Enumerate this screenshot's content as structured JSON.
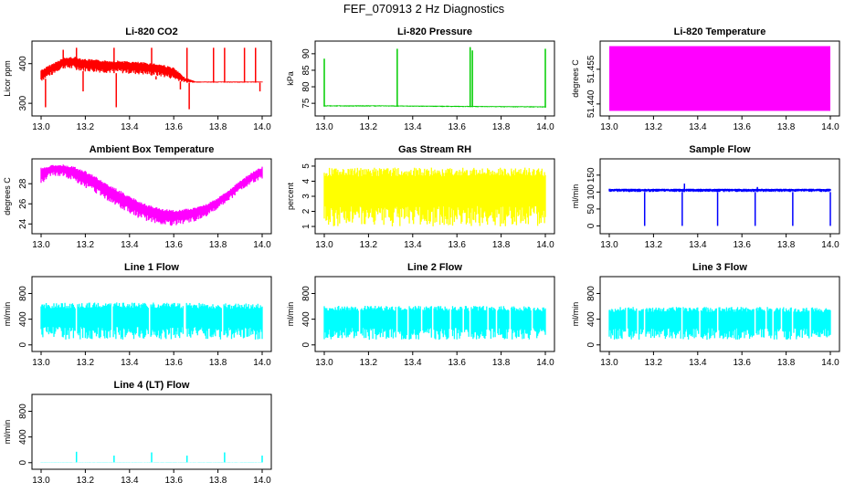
{
  "figure": {
    "title": "FEF_070913  2 Hz Diagnostics"
  },
  "chart_data": [
    {
      "type": "line",
      "title": "Li-820 CO2",
      "ylabel": "Licor ppm",
      "color": "#ff0000",
      "xlim": [
        13.0,
        14.0
      ],
      "ylim": [
        275,
        450
      ],
      "xticks": [
        "13.0",
        "13.2",
        "13.4",
        "13.6",
        "13.8",
        "14.0"
      ],
      "yticks": [
        {
          "v": 300,
          "label": "300"
        },
        {
          "v": 400,
          "label": "400"
        }
      ],
      "series": [
        {
          "x": [
            13.0,
            13.05,
            13.1,
            13.15,
            13.2,
            13.25,
            13.3,
            13.35,
            13.4,
            13.45,
            13.5,
            13.55,
            13.6,
            13.65,
            13.7,
            13.75,
            13.8,
            13.85,
            13.9,
            13.95,
            14.0
          ],
          "low": [
            355,
            372,
            388,
            385,
            380,
            378,
            376,
            376,
            374,
            372,
            370,
            366,
            360,
            352,
            352,
            352,
            352,
            352,
            352,
            352,
            352
          ],
          "high": [
            385,
            400,
            415,
            418,
            412,
            410,
            408,
            408,
            406,
            404,
            402,
            398,
            390,
            365,
            355,
            355,
            355,
            355,
            355,
            355,
            355
          ]
        }
      ],
      "spikes": [
        {
          "x": 13.02,
          "y": 290
        },
        {
          "x": 13.05,
          "y": 380
        },
        {
          "x": 13.1,
          "y": 435
        },
        {
          "x": 13.16,
          "y": 440
        },
        {
          "x": 13.19,
          "y": 330
        },
        {
          "x": 13.33,
          "y": 440
        },
        {
          "x": 13.34,
          "y": 290
        },
        {
          "x": 13.5,
          "y": 440
        },
        {
          "x": 13.52,
          "y": 360
        },
        {
          "x": 13.63,
          "y": 335
        },
        {
          "x": 13.66,
          "y": 440
        },
        {
          "x": 13.67,
          "y": 285
        },
        {
          "x": 13.78,
          "y": 440
        },
        {
          "x": 13.83,
          "y": 440
        },
        {
          "x": 13.92,
          "y": 440
        },
        {
          "x": 13.97,
          "y": 440
        },
        {
          "x": 13.99,
          "y": 330
        }
      ]
    },
    {
      "type": "line",
      "title": "Li-820 Pressure",
      "ylabel": "kPa",
      "color": "#00cd00",
      "xlim": [
        13.0,
        14.0
      ],
      "ylim": [
        72,
        93
      ],
      "xticks": [
        "13.0",
        "13.2",
        "13.4",
        "13.6",
        "13.8",
        "14.0"
      ],
      "yticks": [
        {
          "v": 75,
          "label": "75"
        },
        {
          "v": 80,
          "label": "80"
        },
        {
          "v": 85,
          "label": "85"
        },
        {
          "v": 90,
          "label": "90"
        }
      ],
      "series": [
        {
          "x": [
            13.0,
            13.25,
            13.5,
            13.75,
            14.0
          ],
          "low": [
            74.0,
            74.0,
            73.9,
            73.8,
            73.7
          ],
          "high": [
            74.4,
            74.4,
            74.3,
            74.2,
            74.1
          ]
        }
      ],
      "spikes": [
        {
          "x": 13.0,
          "y": 88.5
        },
        {
          "x": 13.33,
          "y": 91.5
        },
        {
          "x": 13.66,
          "y": 92.0
        },
        {
          "x": 13.67,
          "y": 91.0
        },
        {
          "x": 14.0,
          "y": 91.5
        }
      ]
    },
    {
      "type": "area",
      "title": "Li-820 Temperature",
      "ylabel": "degrees C",
      "color": "#ff00ff",
      "xlim": [
        13.0,
        14.0
      ],
      "ylim": [
        51.436,
        51.466
      ],
      "xticks": [
        "13.0",
        "13.2",
        "13.4",
        "13.6",
        "13.8",
        "14.0"
      ],
      "yticks": [
        {
          "v": 51.44,
          "label": "51.440"
        },
        {
          "v": 51.455,
          "label": "51.455"
        }
      ],
      "series": [
        {
          "x": [
            13.0,
            14.0
          ],
          "low": [
            51.437,
            51.437
          ],
          "high": [
            51.465,
            51.465
          ]
        }
      ],
      "spikes": []
    },
    {
      "type": "line",
      "title": "Ambient Box Temperature",
      "ylabel": "degrees C",
      "color": "#ff00ff",
      "xlim": [
        13.0,
        14.0
      ],
      "ylim": [
        23.3,
        30.2
      ],
      "xticks": [
        "13.0",
        "13.2",
        "13.4",
        "13.6",
        "13.8",
        "14.0"
      ],
      "yticks": [
        {
          "v": 24,
          "label": "24"
        },
        {
          "v": 26,
          "label": "26"
        },
        {
          "v": 28,
          "label": "28"
        }
      ],
      "series": [
        {
          "x": [
            13.0,
            13.05,
            13.1,
            13.15,
            13.2,
            13.25,
            13.3,
            13.35,
            13.4,
            13.45,
            13.5,
            13.55,
            13.6,
            13.65,
            13.7,
            13.75,
            13.8,
            13.85,
            13.9,
            13.95,
            14.0
          ],
          "low": [
            28.0,
            28.8,
            28.7,
            28.2,
            27.6,
            27.0,
            26.3,
            25.6,
            25.0,
            24.5,
            24.1,
            23.9,
            23.8,
            24.0,
            24.3,
            24.8,
            25.5,
            26.3,
            27.2,
            28.0,
            28.5
          ],
          "high": [
            29.6,
            29.9,
            29.9,
            29.7,
            29.3,
            28.7,
            28.0,
            27.4,
            26.8,
            26.2,
            25.8,
            25.5,
            25.4,
            25.5,
            25.7,
            26.0,
            26.6,
            27.4,
            28.3,
            29.1,
            29.7
          ]
        }
      ],
      "spikes": []
    },
    {
      "type": "line",
      "title": "Gas Stream RH",
      "ylabel": "percent",
      "color": "#ffff00",
      "xlim": [
        13.0,
        14.0
      ],
      "ylim": [
        0.7,
        5.3
      ],
      "xticks": [
        "13.0",
        "13.2",
        "13.4",
        "13.6",
        "13.8",
        "14.0"
      ],
      "yticks": [
        {
          "v": 1,
          "label": "1"
        },
        {
          "v": 2,
          "label": "2"
        },
        {
          "v": 3,
          "label": "3"
        },
        {
          "v": 4,
          "label": "4"
        },
        {
          "v": 5,
          "label": "5"
        }
      ],
      "series": [
        {
          "x": [
            13.0,
            13.25,
            13.5,
            13.75,
            14.0
          ],
          "low": [
            1.0,
            1.0,
            1.0,
            1.0,
            1.0
          ],
          "high": [
            4.9,
            4.9,
            4.9,
            4.9,
            4.9
          ]
        }
      ],
      "spikes": []
    },
    {
      "type": "line",
      "title": "Sample Flow",
      "ylabel": "ml/min",
      "color": "#0000ff",
      "xlim": [
        13.0,
        14.0
      ],
      "ylim": [
        -15,
        190
      ],
      "xticks": [
        "13.0",
        "13.2",
        "13.4",
        "13.6",
        "13.8",
        "14.0"
      ],
      "yticks": [
        {
          "v": 0,
          "label": "0"
        },
        {
          "v": 50,
          "label": "50"
        },
        {
          "v": 100,
          "label": "100"
        },
        {
          "v": 150,
          "label": "150"
        }
      ],
      "series": [
        {
          "x": [
            13.0,
            13.25,
            13.5,
            13.75,
            14.0
          ],
          "low": [
            100,
            100,
            100,
            100,
            100
          ],
          "high": [
            110,
            110,
            110,
            110,
            110
          ]
        }
      ],
      "spikes": [
        {
          "x": 13.16,
          "y": 0
        },
        {
          "x": 13.33,
          "y": 0
        },
        {
          "x": 13.34,
          "y": 125
        },
        {
          "x": 13.49,
          "y": 0
        },
        {
          "x": 13.66,
          "y": 0
        },
        {
          "x": 13.67,
          "y": 115
        },
        {
          "x": 13.83,
          "y": 0
        },
        {
          "x": 14.0,
          "y": 0
        }
      ]
    },
    {
      "type": "line",
      "title": "Line 1 Flow",
      "ylabel": "ml/min",
      "color": "#00ffff",
      "xlim": [
        13.0,
        14.0
      ],
      "ylim": [
        -60,
        1020
      ],
      "xticks": [
        "13.0",
        "13.2",
        "13.4",
        "13.6",
        "13.8",
        "14.0"
      ],
      "yticks": [
        {
          "v": 0,
          "label": "0"
        },
        {
          "v": 400,
          "label": "400"
        },
        {
          "v": 800,
          "label": "800"
        }
      ],
      "series": [
        {
          "x": [
            13.0,
            13.25,
            13.5,
            13.75,
            14.0
          ],
          "low": [
            80,
            80,
            80,
            80,
            80
          ],
          "high": [
            650,
            660,
            660,
            650,
            640
          ]
        }
      ],
      "spikes": [],
      "gaps": [
        13.16,
        13.32,
        13.49,
        13.65,
        13.82
      ]
    },
    {
      "type": "line",
      "title": "Line 2 Flow",
      "ylabel": "ml/min",
      "color": "#00ffff",
      "xlim": [
        13.0,
        14.0
      ],
      "ylim": [
        -60,
        1020
      ],
      "xticks": [
        "13.0",
        "13.2",
        "13.4",
        "13.6",
        "13.8",
        "14.0"
      ],
      "yticks": [
        {
          "v": 0,
          "label": "0"
        },
        {
          "v": 400,
          "label": "400"
        },
        {
          "v": 800,
          "label": "800"
        }
      ],
      "series": [
        {
          "x": [
            13.0,
            13.25,
            13.5,
            13.75,
            14.0
          ],
          "low": [
            80,
            80,
            80,
            80,
            80
          ],
          "high": [
            610,
            610,
            610,
            610,
            600
          ]
        }
      ],
      "spikes": [],
      "gaps": [
        13.16,
        13.33,
        13.38,
        13.44,
        13.49,
        13.57,
        13.63,
        13.66,
        13.74,
        13.78,
        13.84,
        13.94
      ]
    },
    {
      "type": "line",
      "title": "Line 3 Flow",
      "ylabel": "ml/min",
      "color": "#00ffff",
      "xlim": [
        13.0,
        14.0
      ],
      "ylim": [
        -60,
        1020
      ],
      "xticks": [
        "13.0",
        "13.2",
        "13.4",
        "13.6",
        "13.8",
        "14.0"
      ],
      "yticks": [
        {
          "v": 0,
          "label": "0"
        },
        {
          "v": 400,
          "label": "400"
        },
        {
          "v": 800,
          "label": "800"
        }
      ],
      "series": [
        {
          "x": [
            13.0,
            13.25,
            13.5,
            13.75,
            14.0
          ],
          "low": [
            80,
            80,
            80,
            80,
            80
          ],
          "high": [
            590,
            590,
            590,
            590,
            580
          ]
        }
      ],
      "spikes": [],
      "gaps": [
        13.08,
        13.13,
        13.16,
        13.33,
        13.41,
        13.49,
        13.66,
        13.71,
        13.74,
        13.78,
        13.83,
        13.91
      ]
    },
    {
      "type": "line",
      "title": "Line 4 (LT) Flow",
      "ylabel": "ml/min",
      "color": "#00ffff",
      "xlim": [
        13.0,
        14.0
      ],
      "ylim": [
        -60,
        1020
      ],
      "xticks": [
        "13.0",
        "13.2",
        "13.4",
        "13.6",
        "13.8",
        "14.0"
      ],
      "yticks": [
        {
          "v": 0,
          "label": "0"
        },
        {
          "v": 400,
          "label": "400"
        },
        {
          "v": 800,
          "label": "800"
        }
      ],
      "series": [
        {
          "x": [
            13.0,
            13.5,
            14.0
          ],
          "low": [
            5,
            5,
            5
          ],
          "high": [
            10,
            10,
            10
          ]
        }
      ],
      "spikes": [
        {
          "x": 13.16,
          "y": 170
        },
        {
          "x": 13.33,
          "y": 110
        },
        {
          "x": 13.5,
          "y": 160
        },
        {
          "x": 13.66,
          "y": 110
        },
        {
          "x": 13.83,
          "y": 160
        },
        {
          "x": 14.0,
          "y": 110
        }
      ]
    }
  ]
}
